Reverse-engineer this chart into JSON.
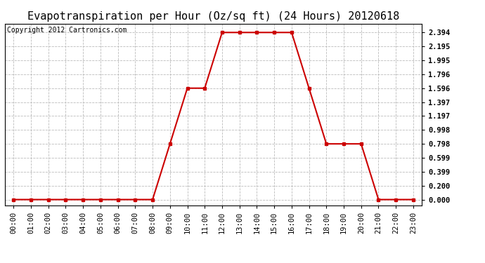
{
  "title": "Evapotranspiration per Hour (Oz/sq ft) (24 Hours) 20120618",
  "copyright_text": "Copyright 2012 Cartronics.com",
  "hours": [
    0,
    1,
    2,
    3,
    4,
    5,
    6,
    7,
    8,
    9,
    10,
    11,
    12,
    13,
    14,
    15,
    16,
    17,
    18,
    19,
    20,
    21,
    22,
    23
  ],
  "values": [
    0.0,
    0.0,
    0.0,
    0.0,
    0.0,
    0.0,
    0.0,
    0.0,
    0.0,
    0.798,
    1.596,
    1.596,
    2.394,
    2.394,
    2.394,
    2.394,
    2.394,
    1.596,
    0.798,
    0.798,
    0.798,
    0.0,
    0.0,
    0.0
  ],
  "x_labels": [
    "00:00",
    "01:00",
    "02:00",
    "03:00",
    "04:00",
    "05:00",
    "06:00",
    "07:00",
    "08:00",
    "09:00",
    "10:00",
    "11:00",
    "12:00",
    "13:00",
    "14:00",
    "15:00",
    "16:00",
    "17:00",
    "18:00",
    "19:00",
    "20:00",
    "21:00",
    "22:00",
    "23:00"
  ],
  "y_ticks": [
    0.0,
    0.2,
    0.399,
    0.599,
    0.798,
    0.998,
    1.197,
    1.397,
    1.596,
    1.796,
    1.995,
    2.195,
    2.394
  ],
  "y_tick_labels": [
    "0.000",
    "0.200",
    "0.399",
    "0.599",
    "0.798",
    "0.998",
    "1.197",
    "1.397",
    "1.596",
    "1.796",
    "1.995",
    "2.195",
    "2.394"
  ],
  "line_color": "#cc0000",
  "marker_color": "#cc0000",
  "bg_color": "#ffffff",
  "plot_bg_color": "#ffffff",
  "grid_color": "#bbbbbb",
  "title_fontsize": 11,
  "copyright_fontsize": 7,
  "tick_fontsize": 7.5
}
